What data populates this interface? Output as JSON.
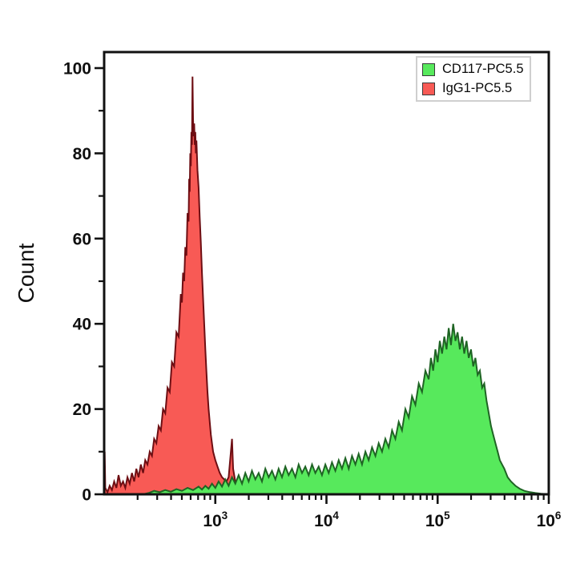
{
  "chart_data": {
    "type": "area",
    "subtype": "flow-cytometry-overlay-histogram",
    "xlabel": "",
    "ylabel": "Count",
    "x_scale": "log10",
    "x_range_log10": [
      2,
      6
    ],
    "x_tick_labels": [
      {
        "base": "10",
        "exp": "3",
        "log10": 3
      },
      {
        "base": "10",
        "exp": "4",
        "log10": 4
      },
      {
        "base": "10",
        "exp": "5",
        "log10": 5
      },
      {
        "base": "10",
        "exp": "6",
        "log10": 6
      }
    ],
    "ylim": [
      0,
      104
    ],
    "y_ticks": [
      0,
      20,
      40,
      60,
      80,
      100
    ],
    "y_minor_ticks": [
      10,
      30,
      50,
      70,
      90
    ],
    "grid": false,
    "axis_color": "#111111",
    "legend": {
      "position": "top-right",
      "entries": [
        {
          "label": "CD117-PC5.5",
          "color": "#57e95c"
        },
        {
          "label": "IgG1-PC5.5",
          "color": "#f85a55"
        }
      ]
    },
    "series": [
      {
        "name": "IgG1-PC5.5",
        "fill": "#f85a55",
        "stroke": "#6e0e13",
        "points": [
          [
            2.0,
            0
          ],
          [
            2.005,
            10
          ],
          [
            2.01,
            1.5
          ],
          [
            2.03,
            0.5
          ],
          [
            2.05,
            2
          ],
          [
            2.07,
            1
          ],
          [
            2.09,
            3
          ],
          [
            2.11,
            1.5
          ],
          [
            2.13,
            4.5
          ],
          [
            2.15,
            2
          ],
          [
            2.17,
            3
          ],
          [
            2.19,
            1.5
          ],
          [
            2.21,
            4
          ],
          [
            2.23,
            2.5
          ],
          [
            2.25,
            5
          ],
          [
            2.27,
            3
          ],
          [
            2.29,
            6
          ],
          [
            2.31,
            4
          ],
          [
            2.33,
            7
          ],
          [
            2.35,
            5
          ],
          [
            2.37,
            8
          ],
          [
            2.39,
            7
          ],
          [
            2.41,
            10
          ],
          [
            2.43,
            9
          ],
          [
            2.45,
            13
          ],
          [
            2.47,
            12
          ],
          [
            2.49,
            16
          ],
          [
            2.51,
            15
          ],
          [
            2.53,
            20
          ],
          [
            2.55,
            19
          ],
          [
            2.57,
            25
          ],
          [
            2.59,
            24
          ],
          [
            2.61,
            31
          ],
          [
            2.63,
            30
          ],
          [
            2.65,
            38
          ],
          [
            2.67,
            37
          ],
          [
            2.69,
            47
          ],
          [
            2.7,
            45
          ],
          [
            2.71,
            52
          ],
          [
            2.72,
            50
          ],
          [
            2.73,
            58
          ],
          [
            2.74,
            56
          ],
          [
            2.75,
            66
          ],
          [
            2.76,
            64
          ],
          [
            2.765,
            74
          ],
          [
            2.77,
            71
          ],
          [
            2.775,
            80
          ],
          [
            2.78,
            77
          ],
          [
            2.785,
            85
          ],
          [
            2.79,
            82
          ],
          [
            2.795,
            98
          ],
          [
            2.8,
            88
          ],
          [
            2.805,
            84
          ],
          [
            2.81,
            87
          ],
          [
            2.815,
            82
          ],
          [
            2.82,
            85
          ],
          [
            2.825,
            80
          ],
          [
            2.83,
            83
          ],
          [
            2.84,
            76
          ],
          [
            2.85,
            72
          ],
          [
            2.86,
            65
          ],
          [
            2.87,
            59
          ],
          [
            2.88,
            52
          ],
          [
            2.89,
            46
          ],
          [
            2.9,
            40
          ],
          [
            2.91,
            34
          ],
          [
            2.92,
            29
          ],
          [
            2.93,
            24
          ],
          [
            2.94,
            20
          ],
          [
            2.95,
            17
          ],
          [
            2.96,
            14
          ],
          [
            2.97,
            12
          ],
          [
            2.98,
            10
          ],
          [
            2.99,
            9
          ],
          [
            3.0,
            8
          ],
          [
            3.02,
            6.5
          ],
          [
            3.04,
            5
          ],
          [
            3.06,
            4
          ],
          [
            3.08,
            3.5
          ],
          [
            3.1,
            3
          ],
          [
            3.12,
            4
          ],
          [
            3.14,
            10
          ],
          [
            3.15,
            13
          ],
          [
            3.16,
            6
          ],
          [
            3.18,
            3
          ],
          [
            3.2,
            1.5
          ],
          [
            3.23,
            1
          ],
          [
            3.27,
            0.6
          ],
          [
            3.32,
            0.4
          ],
          [
            3.4,
            0.3
          ],
          [
            3.5,
            0.2
          ],
          [
            3.65,
            0.1
          ],
          [
            3.8,
            0
          ],
          [
            6.0,
            0
          ]
        ]
      },
      {
        "name": "CD117-PC5.5",
        "fill": "#57e95c",
        "stroke": "#1f6424",
        "points": [
          [
            2.0,
            0
          ],
          [
            2.35,
            0
          ],
          [
            2.4,
            0.3
          ],
          [
            2.45,
            0.8
          ],
          [
            2.5,
            0.5
          ],
          [
            2.55,
            1
          ],
          [
            2.6,
            0.6
          ],
          [
            2.65,
            1.2
          ],
          [
            2.7,
            0.8
          ],
          [
            2.75,
            1.5
          ],
          [
            2.8,
            1
          ],
          [
            2.85,
            1.8
          ],
          [
            2.88,
            1.1
          ],
          [
            2.91,
            2
          ],
          [
            2.94,
            1.3
          ],
          [
            2.97,
            2.5
          ],
          [
            3.0,
            1.5
          ],
          [
            3.03,
            3
          ],
          [
            3.06,
            1.8
          ],
          [
            3.09,
            3.5
          ],
          [
            3.12,
            2
          ],
          [
            3.15,
            4
          ],
          [
            3.18,
            2.5
          ],
          [
            3.21,
            4.5
          ],
          [
            3.24,
            2.5
          ],
          [
            3.27,
            5
          ],
          [
            3.3,
            3
          ],
          [
            3.33,
            5.5
          ],
          [
            3.36,
            3.5
          ],
          [
            3.39,
            5
          ],
          [
            3.42,
            3
          ],
          [
            3.45,
            6
          ],
          [
            3.48,
            4
          ],
          [
            3.51,
            5.5
          ],
          [
            3.54,
            3.5
          ],
          [
            3.57,
            6
          ],
          [
            3.6,
            4
          ],
          [
            3.63,
            6.5
          ],
          [
            3.66,
            4.5
          ],
          [
            3.69,
            6
          ],
          [
            3.72,
            4
          ],
          [
            3.75,
            7
          ],
          [
            3.78,
            5
          ],
          [
            3.81,
            6.5
          ],
          [
            3.84,
            4.5
          ],
          [
            3.87,
            7
          ],
          [
            3.9,
            5
          ],
          [
            3.93,
            6.5
          ],
          [
            3.96,
            4.5
          ],
          [
            3.99,
            7
          ],
          [
            4.02,
            5
          ],
          [
            4.05,
            7.5
          ],
          [
            4.08,
            5.5
          ],
          [
            4.11,
            8
          ],
          [
            4.14,
            6
          ],
          [
            4.17,
            8.5
          ],
          [
            4.2,
            6
          ],
          [
            4.23,
            9
          ],
          [
            4.26,
            7
          ],
          [
            4.29,
            9.5
          ],
          [
            4.32,
            7
          ],
          [
            4.35,
            10
          ],
          [
            4.38,
            8
          ],
          [
            4.41,
            11
          ],
          [
            4.44,
            9
          ],
          [
            4.47,
            12
          ],
          [
            4.5,
            10
          ],
          [
            4.53,
            13
          ],
          [
            4.56,
            11
          ],
          [
            4.59,
            15
          ],
          [
            4.62,
            13
          ],
          [
            4.65,
            17
          ],
          [
            4.68,
            15
          ],
          [
            4.71,
            20
          ],
          [
            4.74,
            18
          ],
          [
            4.77,
            23
          ],
          [
            4.8,
            21
          ],
          [
            4.83,
            26
          ],
          [
            4.86,
            24
          ],
          [
            4.89,
            29
          ],
          [
            4.92,
            27
          ],
          [
            4.94,
            32
          ],
          [
            4.96,
            29
          ],
          [
            4.98,
            34
          ],
          [
            5.0,
            31
          ],
          [
            5.02,
            36
          ],
          [
            5.04,
            33
          ],
          [
            5.06,
            37
          ],
          [
            5.08,
            34
          ],
          [
            5.1,
            39
          ],
          [
            5.12,
            35
          ],
          [
            5.14,
            40
          ],
          [
            5.16,
            36
          ],
          [
            5.18,
            38
          ],
          [
            5.2,
            34
          ],
          [
            5.22,
            37
          ],
          [
            5.24,
            33
          ],
          [
            5.26,
            36
          ],
          [
            5.28,
            32
          ],
          [
            5.3,
            34
          ],
          [
            5.32,
            30
          ],
          [
            5.34,
            32
          ],
          [
            5.36,
            28
          ],
          [
            5.38,
            29
          ],
          [
            5.4,
            25
          ],
          [
            5.42,
            26
          ],
          [
            5.44,
            22
          ],
          [
            5.46,
            19
          ],
          [
            5.48,
            16
          ],
          [
            5.5,
            14
          ],
          [
            5.52,
            12
          ],
          [
            5.54,
            10
          ],
          [
            5.56,
            8
          ],
          [
            5.58,
            7
          ],
          [
            5.6,
            6
          ],
          [
            5.63,
            4
          ],
          [
            5.66,
            3
          ],
          [
            5.7,
            2
          ],
          [
            5.74,
            1.3
          ],
          [
            5.78,
            0.8
          ],
          [
            5.83,
            0.5
          ],
          [
            5.88,
            0.3
          ],
          [
            5.93,
            0.15
          ],
          [
            6.0,
            0
          ]
        ]
      }
    ]
  }
}
